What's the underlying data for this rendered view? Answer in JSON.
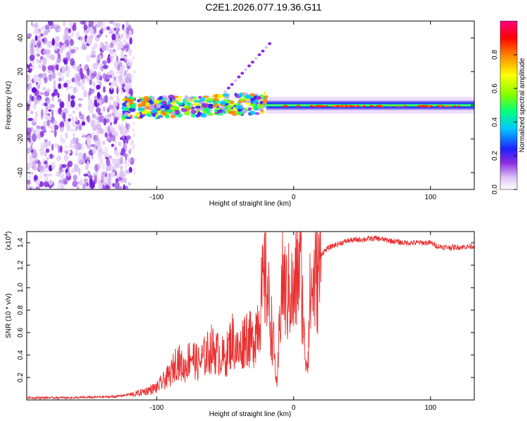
{
  "title": "C2E1.2026.077.19.36.G11",
  "chart_data": [
    {
      "type": "heatmap",
      "name": "spectrogram",
      "xlabel": "Height of straight line (km)",
      "ylabel": "Frequency (Hz)",
      "xlim": [
        -195,
        132
      ],
      "ylim": [
        -50,
        50
      ],
      "xticks": [
        -100,
        0,
        100
      ],
      "xtick_labels": [
        "-100",
        "0",
        "100"
      ],
      "yticks": [
        -40,
        -20,
        0,
        20,
        40
      ],
      "ytick_labels": [
        "-40",
        "-20",
        "0",
        "20",
        "40"
      ],
      "colorbar": {
        "label": "Normalized spectral amplitude",
        "range": [
          0,
          1
        ],
        "ticks": [
          0.0,
          0.2,
          0.4,
          0.6,
          0.8
        ],
        "tick_labels": [
          "0.0",
          "0.2",
          "0.4",
          "0.6",
          "0.8"
        ],
        "colors": [
          "#ffffff",
          "#e0c4f4",
          "#8a2be2",
          "#2020ff",
          "#00c8ff",
          "#00ff80",
          "#80ff00",
          "#ffff00",
          "#ff8000",
          "#ff0000",
          "#ff0080"
        ]
      },
      "regions": [
        {
          "x": [
            -195,
            -118
          ],
          "freq": [
            -50,
            50
          ],
          "description": "broadband low-amplitude noise"
        },
        {
          "x": [
            -125,
            -20
          ],
          "freq": [
            -8,
            8
          ],
          "description": "noisy signal band around 0 Hz"
        },
        {
          "x": [
            -20,
            132
          ],
          "freq": [
            -3,
            3
          ],
          "description": "coherent tone near 0 Hz, amplitude up to 1.0"
        }
      ]
    },
    {
      "type": "line",
      "name": "snr",
      "xlabel": "Height of straight line (km)",
      "ylabel": "SNR (10 * v/v)",
      "multiplier_label": "(x10",
      "multiplier_exp": "4",
      "multiplier_close": ")",
      "xlim": [
        -195,
        132
      ],
      "ylim": [
        0,
        1.5
      ],
      "xticks": [
        -100,
        0,
        100
      ],
      "xtick_labels": [
        "-100",
        "0",
        "100"
      ],
      "yticks": [
        0.2,
        0.4,
        0.6,
        0.8,
        1.0,
        1.2,
        1.4
      ],
      "ytick_labels": [
        "0.2",
        "0.4",
        "0.6",
        "0.8",
        "1.0",
        "1.2",
        "1.4"
      ],
      "color": "#e83030",
      "series": [
        {
          "name": "SNR",
          "x": [
            -195,
            -160,
            -130,
            -115,
            -100,
            -90,
            -85,
            -80,
            -75,
            -70,
            -60,
            -50,
            -45,
            -40,
            -35,
            -30,
            -25,
            -22,
            -20,
            -18,
            -15,
            -12,
            -10,
            -8,
            -5,
            -2,
            0,
            3,
            5,
            8,
            10,
            12,
            15,
            20,
            25,
            30,
            35,
            40,
            50,
            60,
            70,
            80,
            90,
            100,
            105,
            110,
            120,
            132
          ],
          "y": [
            0.02,
            0.02,
            0.03,
            0.06,
            0.12,
            0.25,
            0.4,
            0.3,
            0.45,
            0.35,
            0.5,
            0.4,
            0.6,
            0.45,
            0.65,
            0.55,
            0.85,
            1.1,
            1.25,
            0.9,
            0.6,
            0.1,
            0.85,
            1.2,
            1.0,
            1.1,
            0.95,
            1.3,
            1.4,
            0.5,
            0.35,
            1.0,
            1.15,
            1.3,
            1.35,
            1.38,
            1.4,
            1.42,
            1.43,
            1.44,
            1.42,
            1.4,
            1.4,
            1.4,
            1.37,
            1.36,
            1.36,
            1.37
          ]
        }
      ]
    }
  ]
}
